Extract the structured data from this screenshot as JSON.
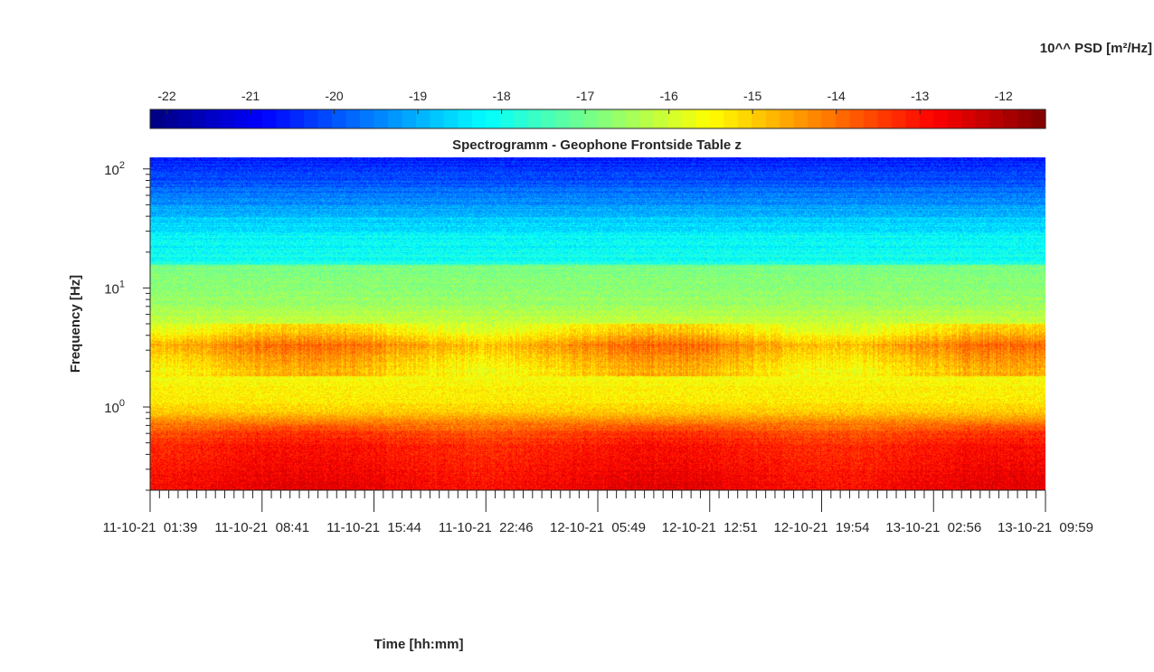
{
  "chart_data": {
    "type": "heatmap",
    "title": "Spectrogramm - Geophone Frontside Table z",
    "xlabel": "Time [hh:mm]",
    "ylabel": "Frequency [Hz]",
    "y_scale": "log",
    "ylim": [
      0.2,
      125
    ],
    "y_ticks": [
      {
        "value": 1,
        "base": "10",
        "exp": "0"
      },
      {
        "value": 10,
        "base": "10",
        "exp": "1"
      },
      {
        "value": 100,
        "base": "10",
        "exp": "2"
      }
    ],
    "x_ticks": [
      "11-10-21  01:39",
      "11-10-21  08:41",
      "11-10-21  15:44",
      "11-10-21  22:46",
      "12-10-21  05:49",
      "12-10-21  12:51",
      "12-10-21  19:54",
      "13-10-21  02:56",
      "13-10-21  09:59"
    ],
    "colorbar": {
      "label": "10^^ PSD [m²/Hz]",
      "placement": "top",
      "colormap": "jet",
      "range": [
        -22.2,
        -11.5
      ],
      "ticks": [
        -22,
        -21,
        -20,
        -19,
        -18,
        -17,
        -16,
        -15,
        -14,
        -13,
        -12
      ]
    },
    "psd_profile": {
      "description_units": "log10 PSD vs frequency (Hz)",
      "freq": [
        0.2,
        0.3,
        0.45,
        0.6,
        0.75,
        0.9,
        1.1,
        1.5,
        2.0,
        2.7,
        3.3,
        4.2,
        5.5,
        8,
        12,
        15.5,
        16,
        25,
        40,
        60,
        90,
        125
      ],
      "log10_psd": [
        -12.7,
        -12.9,
        -13.1,
        -13.5,
        -14.2,
        -14.9,
        -15.3,
        -15.4,
        -15.6,
        -15.2,
        -14.8,
        -15.7,
        -16.2,
        -16.6,
        -16.8,
        -16.9,
        -18.0,
        -18.2,
        -18.8,
        -19.6,
        -20.2,
        -20.6
      ]
    }
  }
}
